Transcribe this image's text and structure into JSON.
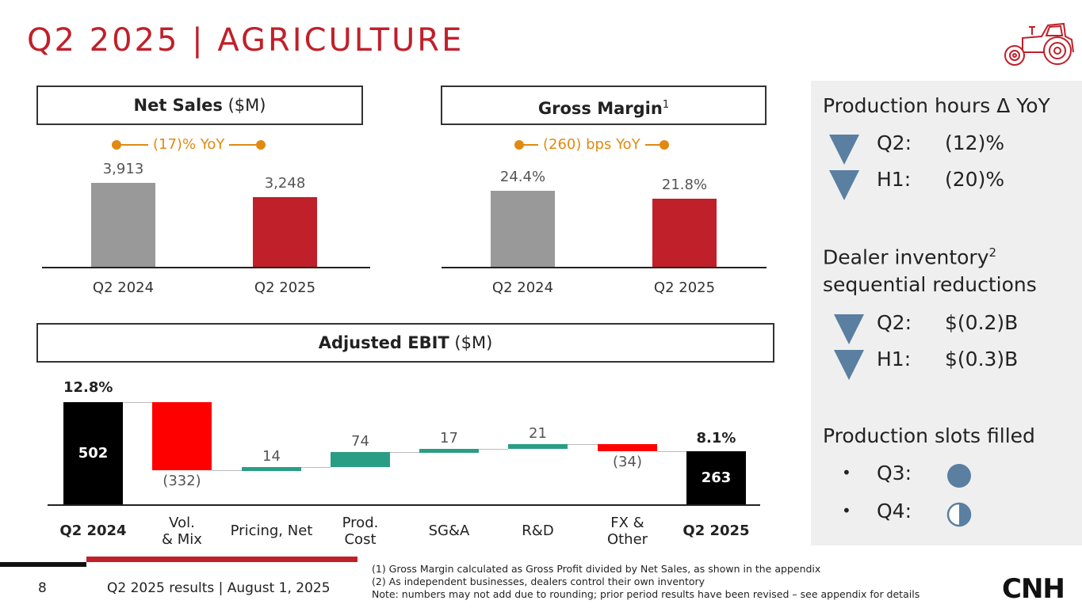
{
  "title": "Q2 2025 | AGRICULTURE",
  "net_sales": {
    "header_bold": "Net Sales",
    "header_rest": " ($M)",
    "yoy": "(17)% YoY",
    "colors": {
      "prior": "#999999",
      "current": "#c0202a"
    },
    "chart_data": {
      "type": "bar",
      "categories": [
        "Q2 2024",
        "Q2 2025"
      ],
      "values": [
        3913,
        3248
      ],
      "labels": [
        "3,913",
        "3,248"
      ]
    }
  },
  "gross_margin": {
    "header_bold": "Gross Margin",
    "header_sup": "1",
    "yoy": "(260) bps YoY",
    "chart_data": {
      "type": "bar",
      "categories": [
        "Q2 2024",
        "Q2 2025"
      ],
      "values": [
        24.4,
        21.8
      ],
      "labels": [
        "24.4%",
        "21.8%"
      ]
    }
  },
  "ebit": {
    "header_bold": "Adjusted EBIT",
    "header_rest": " ($M)",
    "start_margin": "12.8%",
    "end_margin": "8.1%",
    "colors": {
      "total": "#000000",
      "negative": "#ff0000",
      "positive": "#2a9d85"
    },
    "chart_data": {
      "type": "bar",
      "subtype": "waterfall",
      "categories": [
        "Q2 2024",
        "Vol.\n& Mix",
        "Pricing, Net",
        "Prod.\nCost",
        "SG&A",
        "R&D",
        "FX &\nOther",
        "Q2 2025"
      ],
      "values": [
        502,
        -332,
        14,
        74,
        17,
        21,
        -34,
        263
      ],
      "labels": [
        "502",
        "(332)",
        "14",
        "74",
        "17",
        "21",
        "(34)",
        "263"
      ]
    }
  },
  "panel": {
    "production_hours_title": "Production hours Δ YoY",
    "ph_q2_label": "Q2:",
    "ph_q2_value": "(12)%",
    "ph_h1_label": "H1:",
    "ph_h1_value": "(20)%",
    "dealer_title_line1": "Dealer inventory",
    "dealer_sup": "2",
    "dealer_title_line2": "sequential reductions",
    "di_q2_label": "Q2:",
    "di_q2_value": "$(0.2)B",
    "di_h1_label": "H1:",
    "di_h1_value": "$(0.3)B",
    "slots_title": "Production slots filled",
    "bullet": "•",
    "slot_q3_label": "Q3:",
    "slot_q3_fill": "full",
    "slot_q4_label": "Q4:",
    "slot_q4_fill": "half",
    "accent": "#5a7fa0"
  },
  "footer": {
    "page_number": "8",
    "caption": "Q2 2025 results | August 1, 2025",
    "note1": "(1) Gross Margin calculated as Gross Profit divided by Net Sales, as shown in the appendix",
    "note2": "(2) As independent businesses, dealers control their own inventory",
    "note3": "Note: numbers may not add due to rounding; prior period results have been revised – see appendix for details",
    "logo": "CNH"
  },
  "icons": {
    "tractor": "tractor-icon"
  }
}
